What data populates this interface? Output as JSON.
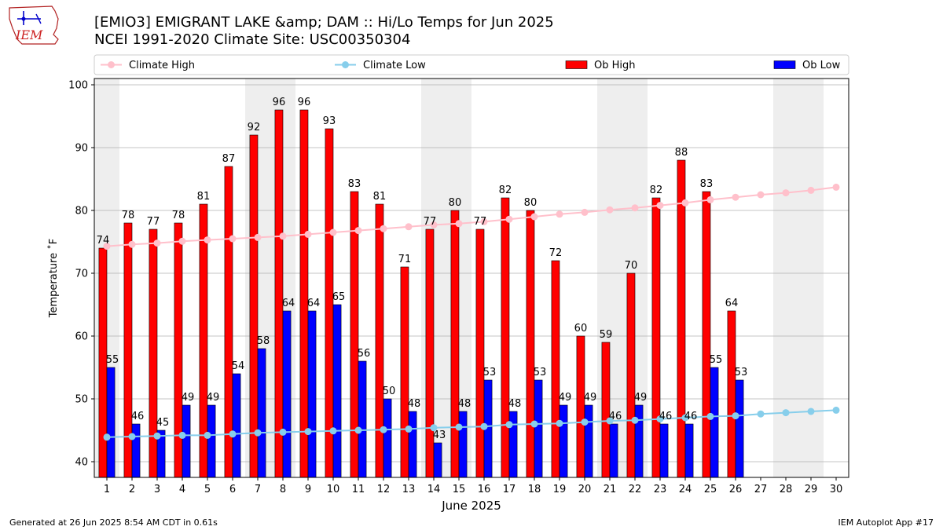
{
  "header": {
    "title_line1": "[EMIO3] EMIGRANT LAKE &amp; DAM :: Hi/Lo Temps for Jun 2025",
    "title_line2": "NCEI 1991-2020 Climate Site: USC00350304",
    "logo_text": "IEM"
  },
  "footer": {
    "left": "Generated at 26 Jun 2025 8:54 AM CDT in 0.61s",
    "right": "IEM Autoplot App #17"
  },
  "colors": {
    "ob_high": "#ff0000",
    "ob_low": "#0000ff",
    "climate_high": "#ffc0cb",
    "climate_low": "#87ceeb",
    "weekend_shade": "#eeeeee",
    "grid": "#b0b0b0"
  },
  "chart_data": {
    "type": "bar",
    "xlabel": "June 2025",
    "ylabel": "Temperature $^\\circ$F",
    "ylabel_display": "Temperature ˚F",
    "ylim": [
      37.5,
      101
    ],
    "yticks": [
      40,
      50,
      60,
      70,
      80,
      90,
      100
    ],
    "grid": "horizontal",
    "legend_position": "top",
    "categories": [
      "1",
      "2",
      "3",
      "4",
      "5",
      "6",
      "7",
      "8",
      "9",
      "10",
      "11",
      "12",
      "13",
      "14",
      "15",
      "16",
      "17",
      "18",
      "19",
      "20",
      "21",
      "22",
      "23",
      "24",
      "25",
      "26",
      "27",
      "28",
      "29",
      "30"
    ],
    "weekend_days": [
      1,
      7,
      8,
      14,
      15,
      21,
      22,
      28,
      29
    ],
    "series": [
      {
        "name": "Climate High",
        "kind": "line",
        "values": [
          74.3,
          74.6,
          74.8,
          75.1,
          75.3,
          75.5,
          75.7,
          75.9,
          76.2,
          76.5,
          76.8,
          77.1,
          77.4,
          77.7,
          77.9,
          78.2,
          78.6,
          79.0,
          79.4,
          79.7,
          80.1,
          80.4,
          80.8,
          81.2,
          81.7,
          82.1,
          82.5,
          82.8,
          83.2,
          83.7
        ]
      },
      {
        "name": "Climate Low",
        "kind": "line",
        "values": [
          43.9,
          44.0,
          44.1,
          44.2,
          44.2,
          44.4,
          44.6,
          44.7,
          44.8,
          44.9,
          45.0,
          45.1,
          45.2,
          45.4,
          45.5,
          45.6,
          45.9,
          46.0,
          46.1,
          46.3,
          46.5,
          46.6,
          46.8,
          47.0,
          47.2,
          47.3,
          47.6,
          47.8,
          48.0,
          48.2
        ]
      },
      {
        "name": "Ob High",
        "kind": "bar",
        "values": [
          74,
          78,
          77,
          78,
          81,
          87,
          92,
          96,
          96,
          93,
          83,
          81,
          71,
          77,
          80,
          77,
          82,
          80,
          72,
          60,
          59,
          70,
          82,
          88,
          83,
          64,
          null,
          null,
          null,
          null
        ],
        "labels": [
          "74",
          "78",
          "77",
          "78",
          "81",
          "87",
          "92",
          "96",
          "96",
          "93",
          "83",
          "81",
          "71",
          "77",
          "80",
          "77",
          "82",
          "80",
          "72",
          "60",
          "59",
          "70",
          "82",
          "88",
          "83",
          "64",
          "",
          "",
          "",
          ""
        ]
      },
      {
        "name": "Ob Low",
        "kind": "bar",
        "values": [
          55,
          46,
          45,
          49,
          49,
          54,
          58,
          64,
          64,
          65,
          56,
          50,
          48,
          43,
          48,
          53,
          48,
          53,
          49,
          49,
          46,
          49,
          46,
          46,
          55,
          53,
          null,
          null,
          null,
          null
        ],
        "labels": [
          "55",
          "46",
          "45",
          "49",
          "49",
          "54",
          "58",
          "64",
          "64",
          "65",
          "56",
          "50",
          "48",
          "43",
          "48",
          "53",
          "48",
          "53",
          "49",
          "49",
          "46",
          "49",
          "46",
          "46",
          "55",
          "53",
          "",
          "",
          "",
          ""
        ]
      }
    ]
  }
}
